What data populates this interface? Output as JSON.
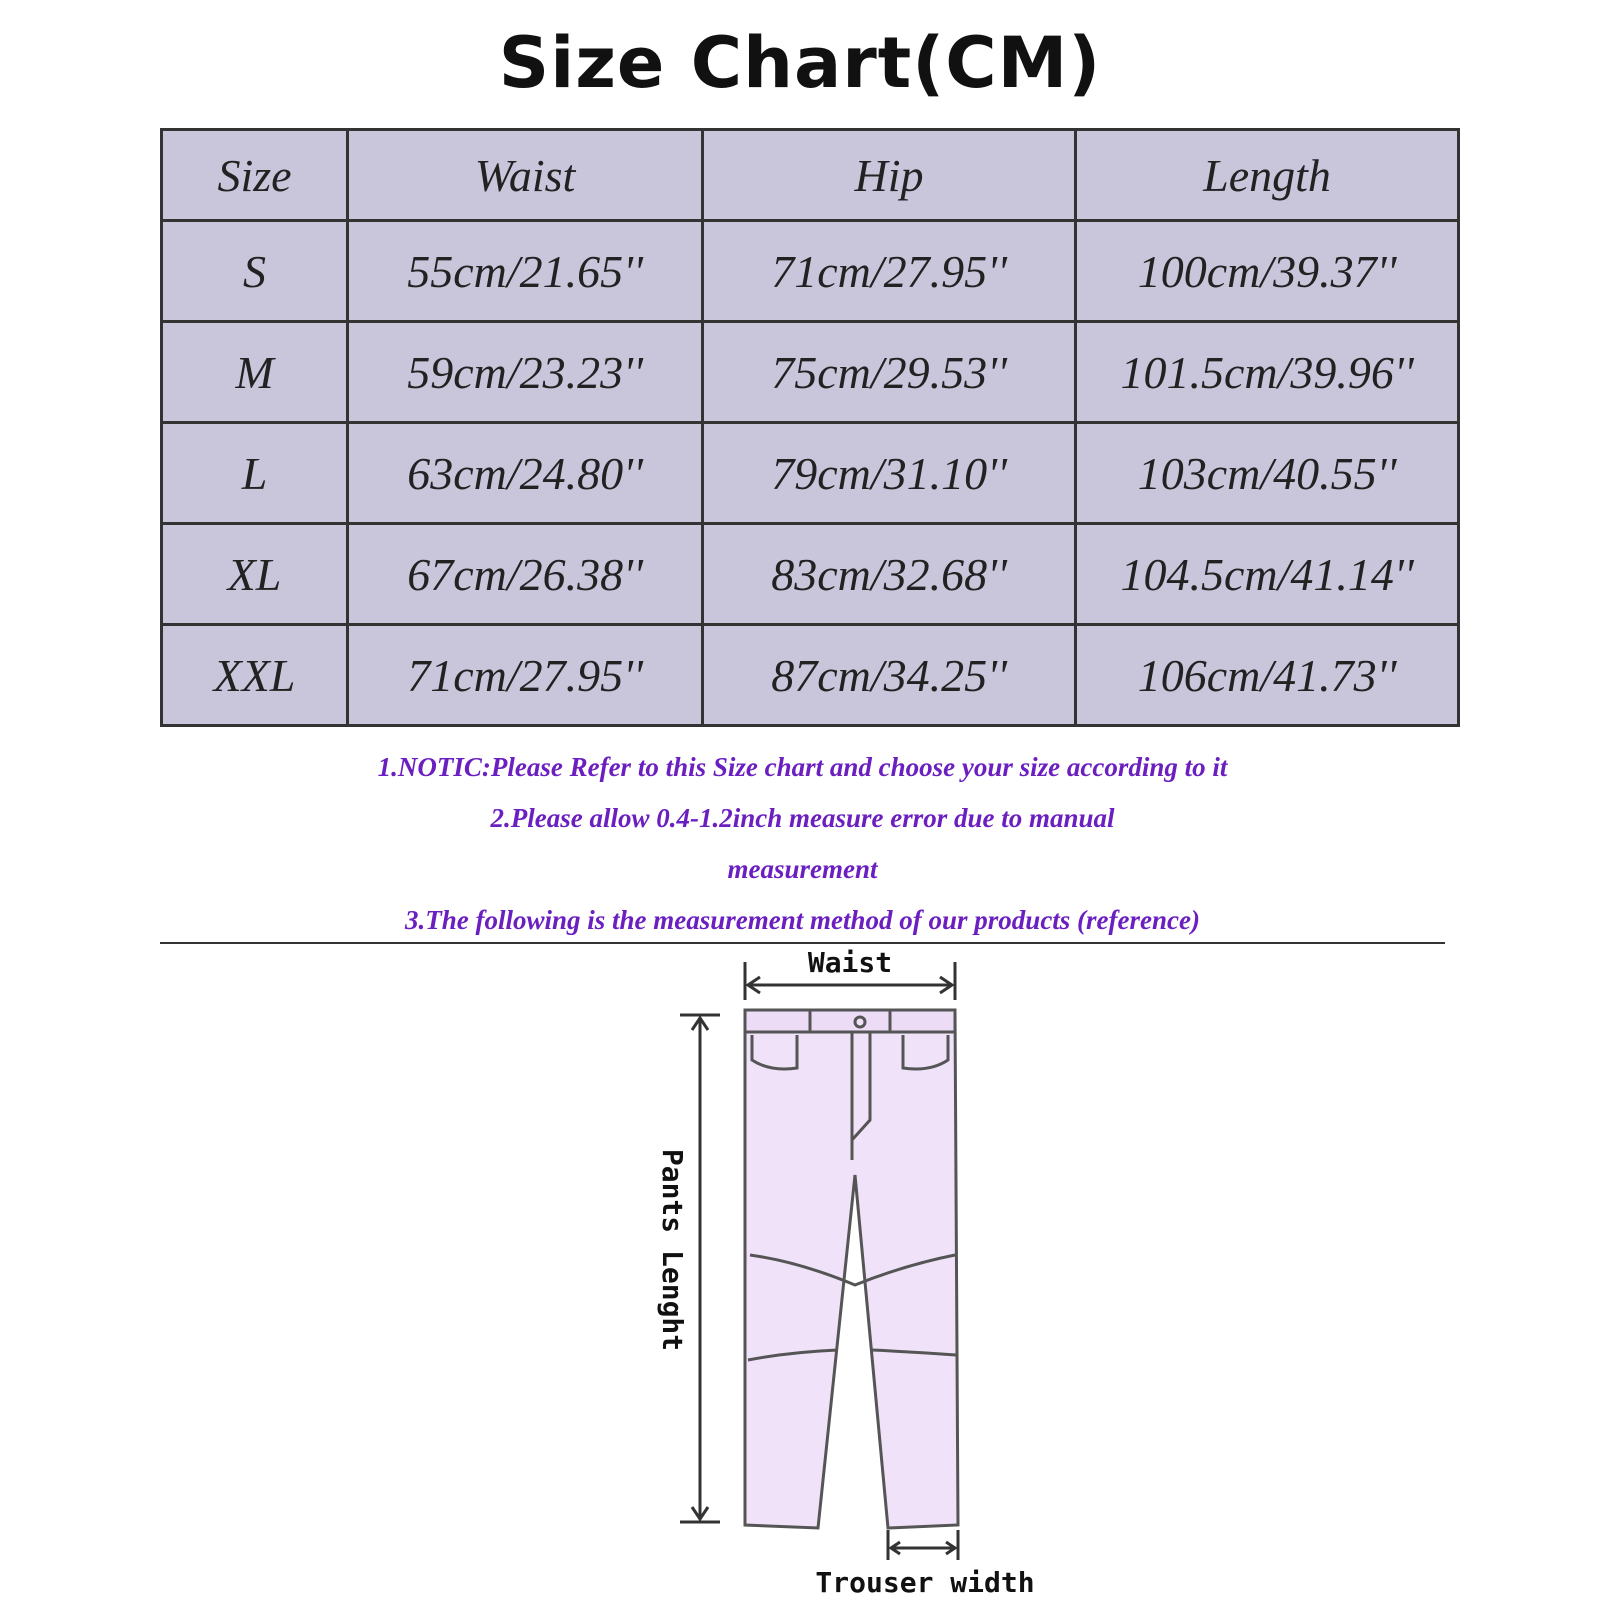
{
  "header": {
    "title": "Size Chart(CM)"
  },
  "table": {
    "columns": [
      "Size",
      "Waist",
      "Hip",
      "Length"
    ],
    "rows": [
      [
        "S",
        "55cm/21.65''",
        "71cm/27.95''",
        "100cm/39.37''"
      ],
      [
        "M",
        "59cm/23.23''",
        "75cm/29.53''",
        "101.5cm/39.96''"
      ],
      [
        "L",
        "63cm/24.80''",
        "79cm/31.10''",
        "103cm/40.55''"
      ],
      [
        "XL",
        "67cm/26.38''",
        "83cm/32.68''",
        "104.5cm/41.14''"
      ],
      [
        "XXL",
        "71cm/27.95''",
        "87cm/34.25''",
        "106cm/41.73''"
      ]
    ]
  },
  "notes": [
    "1.NOTIC:Please Refer to this Size chart and choose your size according to it",
    "2.Please allow 0.4-1.2inch measure error due to manual",
    "measurement",
    "3.The following is the measurement method of our products (reference)"
  ],
  "diagram": {
    "waist_label": "Waist",
    "length_label": "Pants Lenght",
    "width_label": "Trouser width"
  }
}
